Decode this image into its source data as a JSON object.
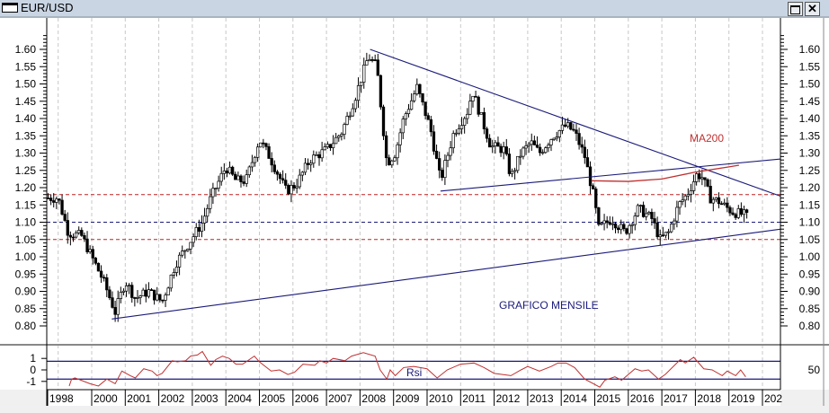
{
  "window": {
    "title": "EUR/USD",
    "maximize_icon": "maximize-icon",
    "close_icon": "close-icon",
    "close_label": "✕"
  },
  "colors": {
    "price_bar": "#000000",
    "trendline": "#1a1a7a",
    "support_dashed_red": "#c02020",
    "support_dashed_blue": "#1a1a7a",
    "ma200": "#c03030",
    "rsi": "#c03030",
    "grid": "#c8c8c8"
  },
  "chart_data": [
    {
      "type": "candlestick",
      "title": "",
      "y_ticks": [
        "1.60",
        "1.55",
        "1.50",
        "1.45",
        "1.40",
        "1.35",
        "1.30",
        "1.25",
        "1.20",
        "1.15",
        "1.10",
        "1.05",
        "1.00",
        "0.95",
        "0.90",
        "0.85",
        "0.80"
      ],
      "ylim": [
        0.75,
        1.65
      ],
      "x_ticks": [
        "1998",
        "2000",
        "2001",
        "2002",
        "2003",
        "2004",
        "2005",
        "2006",
        "2007",
        "2008",
        "2009",
        "2010",
        "2011",
        "2012",
        "2013",
        "2014",
        "2015",
        "2016",
        "2017",
        "2018",
        "2019",
        "202"
      ],
      "xlim": [
        1998.66,
        2020.55
      ],
      "grid": "vertical dashed",
      "monthly_close_keypoints": [
        [
          1998.7,
          1.17
        ],
        [
          1999.0,
          1.17
        ],
        [
          1999.3,
          1.07
        ],
        [
          1999.7,
          1.06
        ],
        [
          2000.0,
          1.0
        ],
        [
          2000.35,
          0.93
        ],
        [
          2000.7,
          0.84
        ],
        [
          2001.0,
          0.93
        ],
        [
          2001.3,
          0.88
        ],
        [
          2001.7,
          0.9
        ],
        [
          2002.1,
          0.87
        ],
        [
          2002.5,
          0.98
        ],
        [
          2002.9,
          1.04
        ],
        [
          2003.3,
          1.1
        ],
        [
          2003.55,
          1.17
        ],
        [
          2004.0,
          1.26
        ],
        [
          2004.3,
          1.22
        ],
        [
          2004.6,
          1.22
        ],
        [
          2005.0,
          1.34
        ],
        [
          2005.3,
          1.29
        ],
        [
          2005.8,
          1.19
        ],
        [
          2006.1,
          1.21
        ],
        [
          2006.5,
          1.28
        ],
        [
          2007.0,
          1.31
        ],
        [
          2007.45,
          1.36
        ],
        [
          2007.85,
          1.46
        ],
        [
          2008.25,
          1.58
        ],
        [
          2008.5,
          1.55
        ],
        [
          2008.8,
          1.27
        ],
        [
          2009.05,
          1.3
        ],
        [
          2009.3,
          1.4
        ],
        [
          2009.7,
          1.49
        ],
        [
          2010.1,
          1.37
        ],
        [
          2010.4,
          1.22
        ],
        [
          2010.8,
          1.36
        ],
        [
          2011.2,
          1.42
        ],
        [
          2011.35,
          1.48
        ],
        [
          2011.9,
          1.32
        ],
        [
          2012.3,
          1.31
        ],
        [
          2012.5,
          1.23
        ],
        [
          2012.8,
          1.3
        ],
        [
          2013.1,
          1.33
        ],
        [
          2013.35,
          1.3
        ],
        [
          2013.75,
          1.35
        ],
        [
          2014.15,
          1.38
        ],
        [
          2014.4,
          1.36
        ],
        [
          2014.7,
          1.29
        ],
        [
          2015.0,
          1.16
        ],
        [
          2015.1,
          1.08
        ],
        [
          2015.5,
          1.11
        ],
        [
          2015.9,
          1.07
        ],
        [
          2016.3,
          1.14
        ],
        [
          2016.7,
          1.11
        ],
        [
          2016.95,
          1.05
        ],
        [
          2017.2,
          1.07
        ],
        [
          2017.5,
          1.15
        ],
        [
          2017.75,
          1.18
        ],
        [
          2018.05,
          1.24
        ],
        [
          2018.2,
          1.23
        ],
        [
          2018.45,
          1.17
        ],
        [
          2018.7,
          1.16
        ],
        [
          2019.1,
          1.13
        ],
        [
          2019.5,
          1.12
        ],
        [
          2019.58,
          1.11
        ]
      ],
      "horizontal_levels": [
        {
          "value": 1.18,
          "style": "red dashed"
        },
        {
          "value": 1.1,
          "style": "blue dashed"
        },
        {
          "value": 1.05,
          "style": "red dashed"
        }
      ],
      "trendlines": [
        {
          "from": [
            2008.3,
            1.6
          ],
          "to": [
            2020.55,
            1.175
          ]
        },
        {
          "from": [
            2000.6,
            0.82
          ],
          "to": [
            2020.55,
            1.08
          ]
        },
        {
          "from": [
            2010.4,
            1.19
          ],
          "to": [
            2020.55,
            1.283
          ]
        }
      ],
      "ma200": {
        "label": "MA200",
        "points": [
          [
            2014.9,
            1.22
          ],
          [
            2016.0,
            1.218
          ],
          [
            2017.0,
            1.225
          ],
          [
            2018.0,
            1.245
          ],
          [
            2019.0,
            1.26
          ],
          [
            2019.3,
            1.265
          ]
        ]
      },
      "annotation": "GRAFICO MENSILE"
    },
    {
      "type": "line",
      "series": [
        {
          "name": "Rsi",
          "points": [
            [
              1999.33,
              -1.4
            ],
            [
              1999.4,
              -0.8
            ],
            [
              1999.5,
              -0.7
            ],
            [
              1999.95,
              -1.2
            ],
            [
              2000.2,
              -1.4
            ],
            [
              2000.45,
              -0.8
            ],
            [
              2000.7,
              -1.2
            ],
            [
              2000.9,
              -0.1
            ],
            [
              2001.15,
              -0.5
            ],
            [
              2001.3,
              -0.7
            ],
            [
              2001.55,
              0.1
            ],
            [
              2001.8,
              -0.1
            ],
            [
              2001.95,
              -0.5
            ],
            [
              2002.1,
              -0.3
            ],
            [
              2002.4,
              0.8
            ],
            [
              2002.55,
              0.7
            ],
            [
              2002.8,
              0.8
            ],
            [
              2002.95,
              1.2
            ],
            [
              2003.15,
              1.3
            ],
            [
              2003.3,
              1.6
            ],
            [
              2003.55,
              0.4
            ],
            [
              2003.7,
              0.9
            ],
            [
              2003.9,
              1.2
            ],
            [
              2004.1,
              1.0
            ],
            [
              2004.3,
              0.5
            ],
            [
              2004.5,
              0.5
            ],
            [
              2004.85,
              1.2
            ],
            [
              2005.0,
              0.7
            ],
            [
              2005.35,
              -0.1
            ],
            [
              2005.6,
              0.0
            ],
            [
              2005.85,
              -0.4
            ],
            [
              2006.05,
              -0.2
            ],
            [
              2006.3,
              0.5
            ],
            [
              2006.65,
              0.4
            ],
            [
              2006.8,
              0.8
            ],
            [
              2007.0,
              0.6
            ],
            [
              2007.2,
              1.0
            ],
            [
              2007.55,
              0.8
            ],
            [
              2007.75,
              1.2
            ],
            [
              2008.1,
              1.5
            ],
            [
              2008.45,
              1.2
            ],
            [
              2008.6,
              0.0
            ],
            [
              2008.8,
              -0.8
            ],
            [
              2008.9,
              0.0
            ],
            [
              2009.05,
              -0.5
            ],
            [
              2009.3,
              0.2
            ],
            [
              2009.6,
              0.3
            ],
            [
              2010.0,
              0.1
            ],
            [
              2010.3,
              -0.7
            ],
            [
              2010.6,
              0.0
            ],
            [
              2011.0,
              0.5
            ],
            [
              2011.4,
              0.6
            ],
            [
              2011.7,
              0.2
            ],
            [
              2012.0,
              -0.3
            ],
            [
              2012.5,
              -0.5
            ],
            [
              2012.8,
              0.0
            ],
            [
              2013.0,
              0.3
            ],
            [
              2013.35,
              -0.1
            ],
            [
              2013.7,
              0.3
            ],
            [
              2013.9,
              0.6
            ],
            [
              2014.15,
              0.6
            ],
            [
              2014.4,
              0.2
            ],
            [
              2014.7,
              -0.8
            ],
            [
              2015.15,
              -1.5
            ],
            [
              2015.3,
              -0.9
            ],
            [
              2015.6,
              -0.6
            ],
            [
              2015.8,
              -0.9
            ],
            [
              2016.0,
              -0.4
            ],
            [
              2016.2,
              0.1
            ],
            [
              2016.4,
              -0.1
            ],
            [
              2016.6,
              0.0
            ],
            [
              2016.9,
              -0.8
            ],
            [
              2017.1,
              -0.4
            ],
            [
              2017.55,
              0.9
            ],
            [
              2017.7,
              0.6
            ],
            [
              2017.95,
              1.1
            ],
            [
              2018.25,
              0.1
            ],
            [
              2018.5,
              0.0
            ],
            [
              2018.8,
              -0.5
            ],
            [
              2018.95,
              -0.1
            ],
            [
              2019.2,
              -0.5
            ],
            [
              2019.35,
              0.0
            ],
            [
              2019.5,
              -0.6
            ]
          ]
        }
      ],
      "label": "Rsi",
      "y_ticks_left": [
        "1",
        "0",
        "-1"
      ],
      "y_ticks_right": [
        "50"
      ],
      "ylim": [
        -1.8,
        2.1
      ],
      "levels": [
        0.75,
        -0.8
      ]
    }
  ]
}
